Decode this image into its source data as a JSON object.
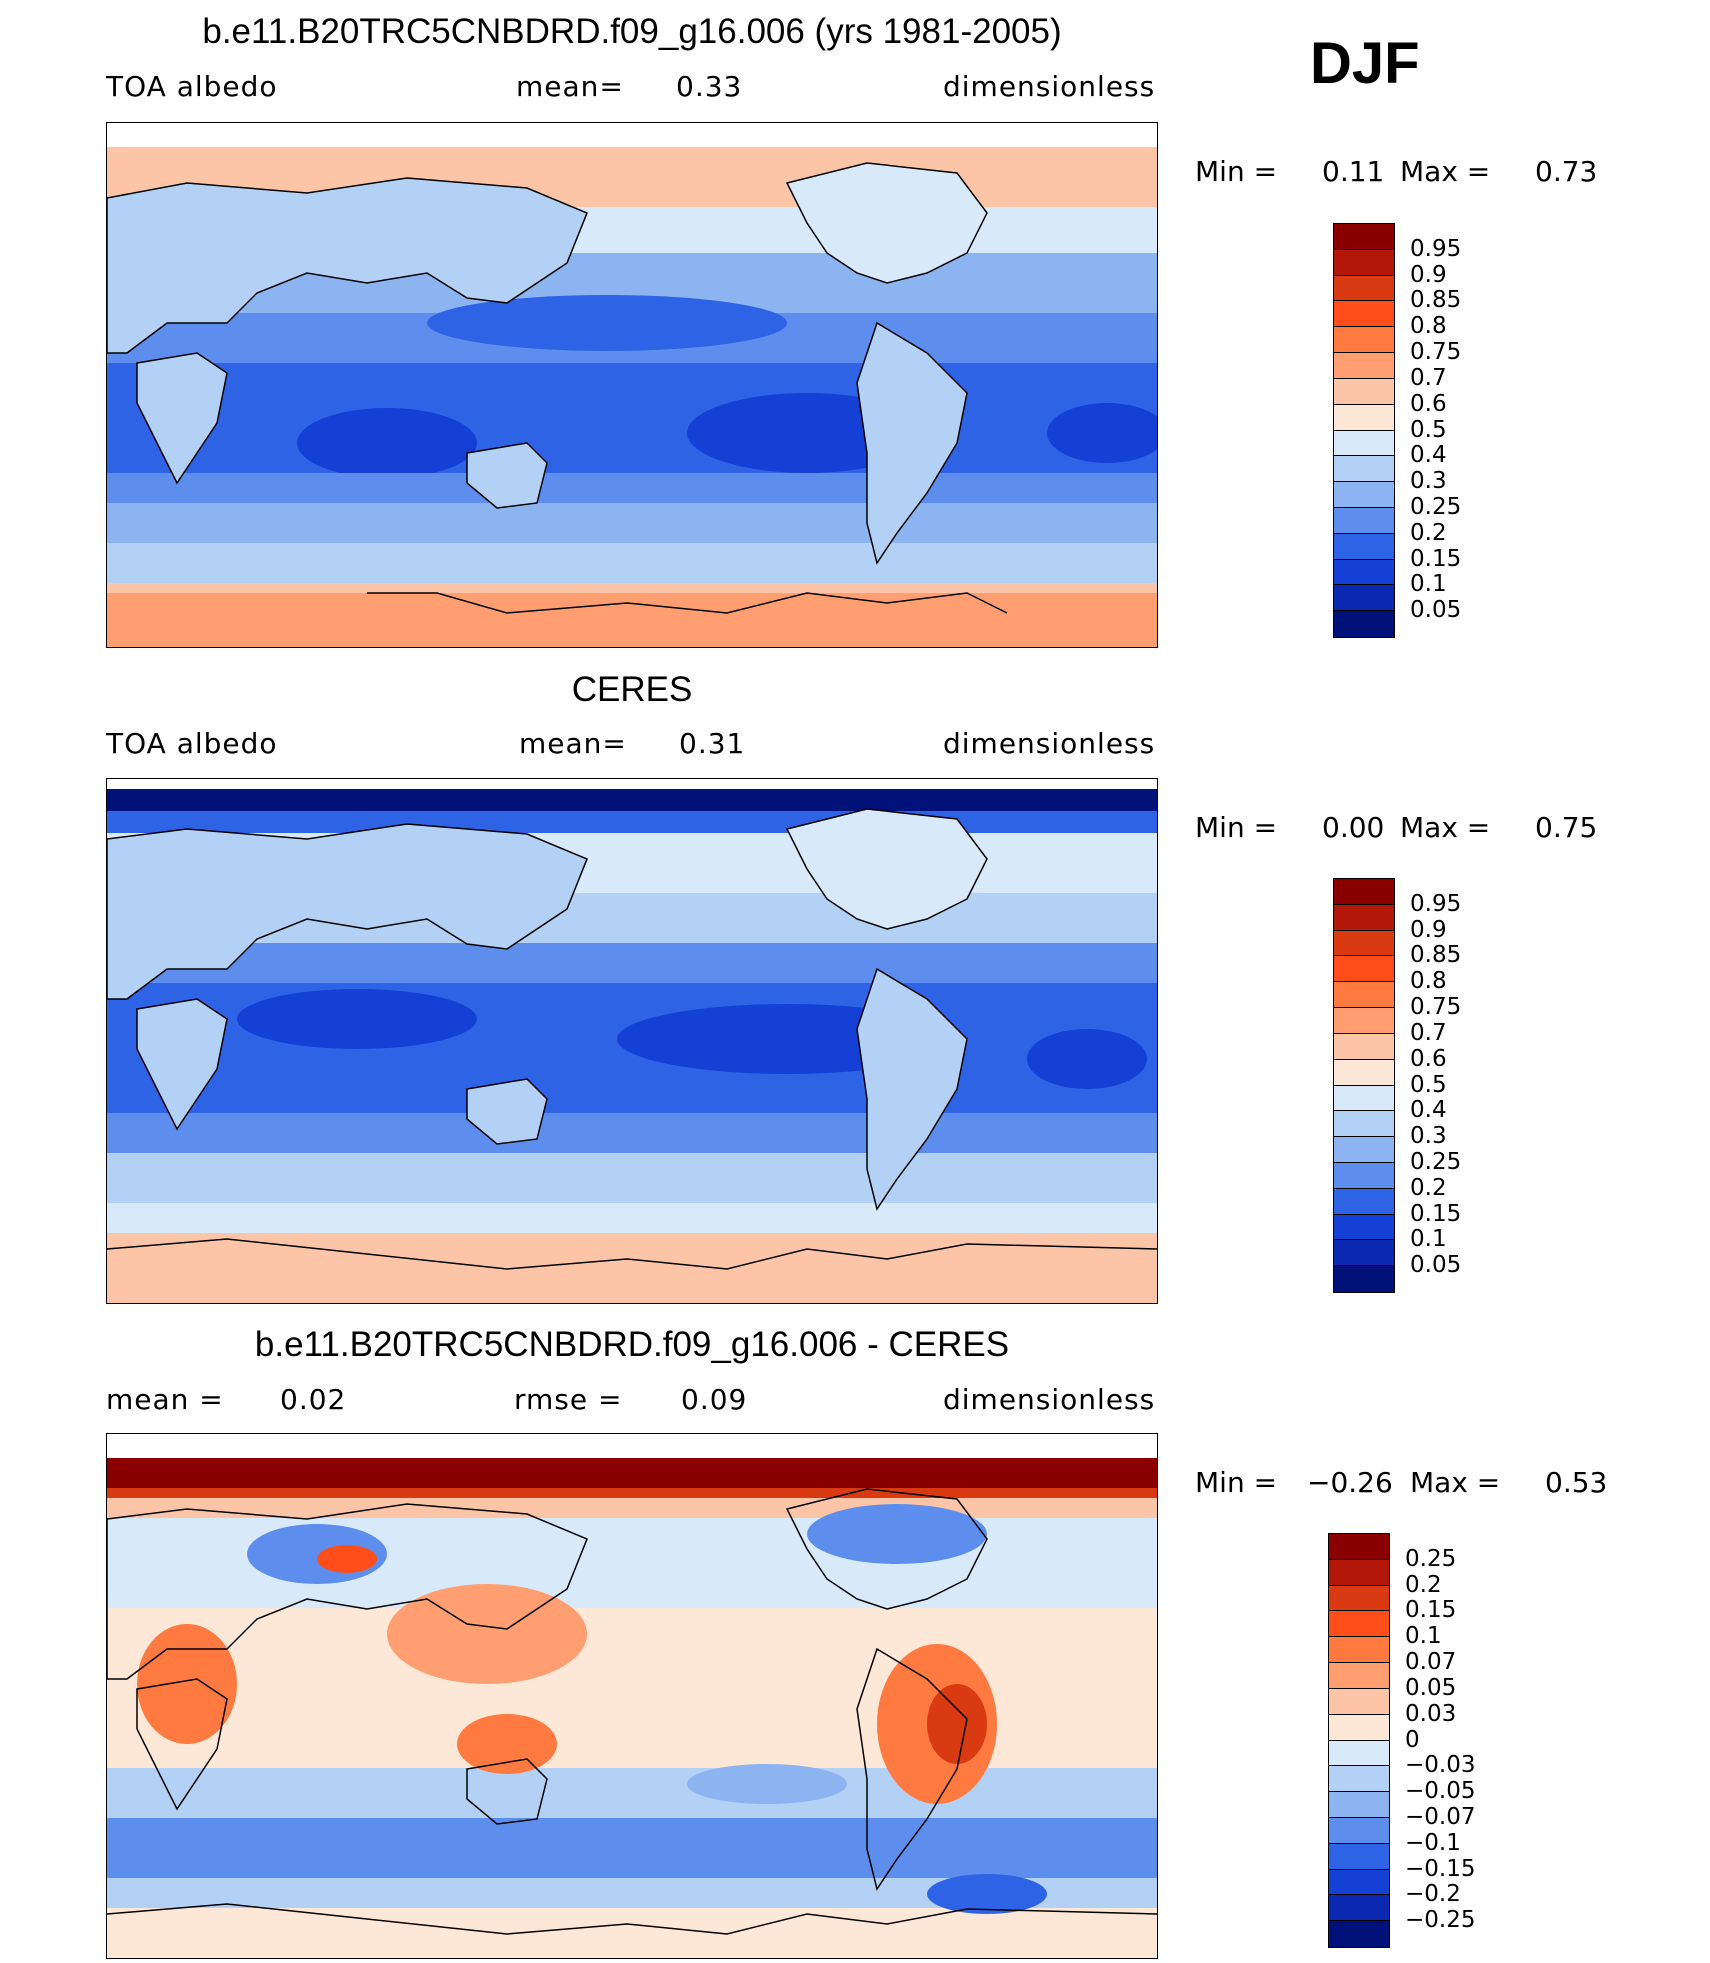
{
  "season": "DJF",
  "panels": [
    {
      "title": "b.e11.B20TRC5CNBDRD.f09_g16.006 (yrs 1981-2005)",
      "left": "TOA  albedo",
      "mid_label": "mean=",
      "mid_value": "0.33",
      "right": "dimensionless",
      "min_label": "Min  =",
      "min_value": "0.11",
      "max_label": "Max  =",
      "max_value": "0.73",
      "colorbar": {
        "labels": [
          "0.95",
          "0.9",
          "0.85",
          "0.8",
          "0.75",
          "0.7",
          "0.6",
          "0.5",
          "0.4",
          "0.3",
          "0.25",
          "0.2",
          "0.15",
          "0.1",
          "0.05"
        ],
        "colors": [
          "#8a0000",
          "#b3170a",
          "#d93a12",
          "#ff4e1a",
          "#ff7a40",
          "#ff9e70",
          "#fdc5a8",
          "#fde7d6",
          "#d8e9fa",
          "#b3d0f5",
          "#8bb4f0",
          "#5d8eed",
          "#2f63e6",
          "#1440d6",
          "#0a28b0",
          "#00127a"
        ]
      }
    },
    {
      "title": "CERES",
      "left": "TOA  albedo",
      "mid_label": "mean=",
      "mid_value": "0.31",
      "right": "dimensionless",
      "min_label": "Min  =",
      "min_value": "0.00",
      "max_label": "Max  =",
      "max_value": "0.75",
      "colorbar": {
        "labels": [
          "0.95",
          "0.9",
          "0.85",
          "0.8",
          "0.75",
          "0.7",
          "0.6",
          "0.5",
          "0.4",
          "0.3",
          "0.25",
          "0.2",
          "0.15",
          "0.1",
          "0.05"
        ],
        "colors": [
          "#8a0000",
          "#b3170a",
          "#d93a12",
          "#ff4e1a",
          "#ff7a40",
          "#ff9e70",
          "#fdc5a8",
          "#fde7d6",
          "#d8e9fa",
          "#b3d0f5",
          "#8bb4f0",
          "#5d8eed",
          "#2f63e6",
          "#1440d6",
          "#0a28b0",
          "#00127a"
        ]
      }
    },
    {
      "title": "b.e11.B20TRC5CNBDRD.f09_g16.006 - CERES",
      "left": "mean  =",
      "left_value": "0.02",
      "mid_label": "rmse  =",
      "mid_value": "0.09",
      "right": "dimensionless",
      "min_label": "Min  =",
      "min_value": "−0.26",
      "max_label": "Max  =",
      "max_value": "0.53",
      "colorbar": {
        "labels": [
          "0.25",
          "0.2",
          "0.15",
          "0.1",
          "0.07",
          "0.05",
          "0.03",
          "0",
          "−0.03",
          "−0.05",
          "−0.07",
          "−0.1",
          "−0.15",
          "−0.2",
          "−0.25"
        ],
        "colors": [
          "#8a0000",
          "#b3170a",
          "#d93a12",
          "#ff4e1a",
          "#ff7a40",
          "#ff9e70",
          "#fdc5a8",
          "#fde7d6",
          "#d8e9fa",
          "#b3d0f5",
          "#8bb4f0",
          "#5d8eed",
          "#2f63e6",
          "#1440d6",
          "#0a28b0",
          "#00127a"
        ]
      }
    }
  ]
}
